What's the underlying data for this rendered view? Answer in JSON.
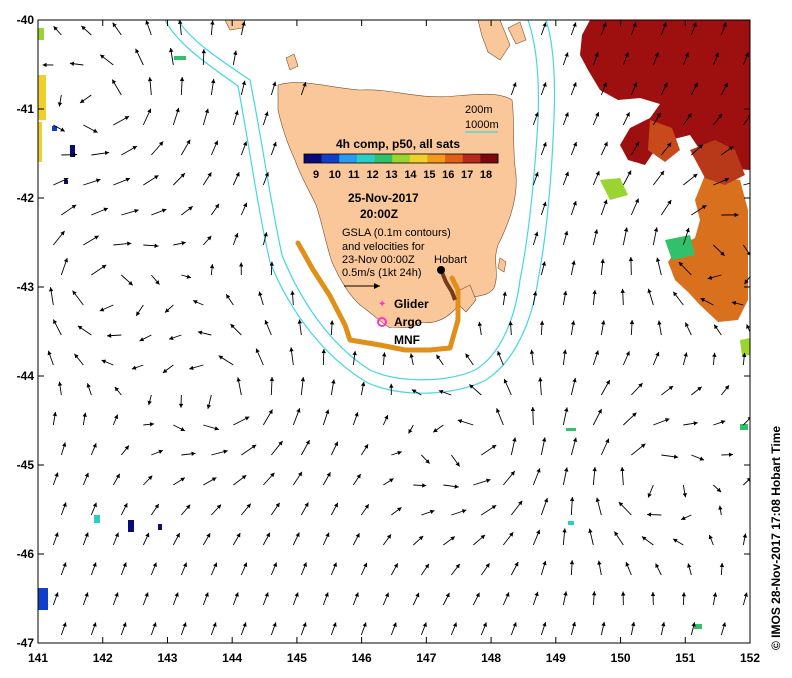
{
  "map": {
    "lon_range": [
      141,
      152
    ],
    "lat_range": [
      -47,
      -40
    ],
    "lon_ticks": [
      "141",
      "142",
      "143",
      "144",
      "145",
      "146",
      "147",
      "148",
      "149",
      "150",
      "151",
      "152"
    ],
    "lat_ticks": [
      "-40",
      "-41",
      "-42",
      "-43",
      "-44",
      "-45",
      "-46",
      "-47"
    ],
    "land_color": "#f9c79a",
    "contour_color": "#44d7e0",
    "arrow_color": "#000000",
    "warm_sst_color": "#9e1010"
  },
  "depth_legend": {
    "d200": "200m",
    "d1000": "1000m"
  },
  "colorbar": {
    "title": "4h comp, p50, all sats",
    "labels": [
      "9",
      "10",
      "11",
      "12",
      "13",
      "14",
      "15",
      "16",
      "17",
      "18"
    ],
    "colors": [
      "#0a0a78",
      "#1040c8",
      "#2a9cf0",
      "#2acfc4",
      "#33c06a",
      "#9ad430",
      "#f0d02a",
      "#f09a20",
      "#e0601a",
      "#b8281a",
      "#7a0a0a"
    ]
  },
  "annotation": {
    "date": "25-Nov-2017",
    "time": "20:00Z",
    "gsla_line1": "GSLA (0.1m contours)",
    "gsla_line2": "and velocities for",
    "gsla_line3": "23-Nov 00:00Z",
    "scale_label": "0.5m/s (1kt 24h)",
    "city": "Hobart"
  },
  "legend": {
    "glider": "Glider",
    "argo": "Argo",
    "mnf": "MNF"
  },
  "credit": "© IMOS 28-Nov-2017 17:08 Hobart Time"
}
